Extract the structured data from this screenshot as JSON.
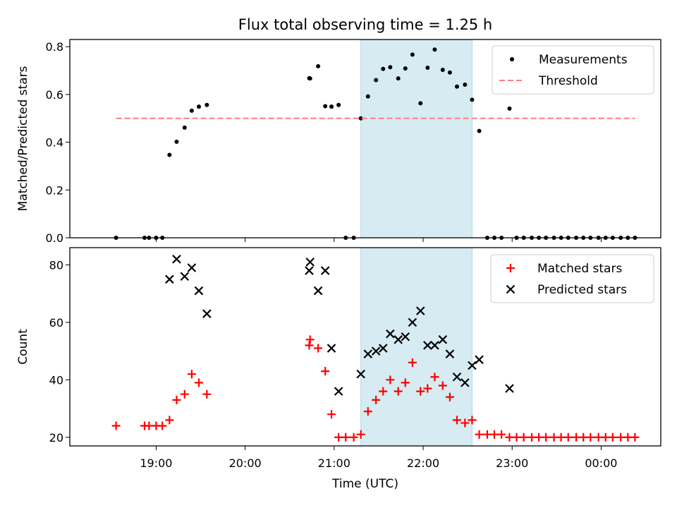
{
  "chart_data": {
    "title": "Flux total observing time = 1.25 h",
    "xlabel": "Time (UTC)",
    "x_ticks": [
      "19:00",
      "20:00",
      "21:00",
      "22:00",
      "23:00",
      "00:00"
    ],
    "x_tick_values": [
      19.0,
      20.0,
      21.0,
      22.0,
      23.0,
      24.0
    ],
    "xlim": [
      18.03,
      24.67
    ],
    "highlight_span": {
      "x0": 21.3,
      "x1": 22.55,
      "color": "#add8e6"
    },
    "times": [
      18.55,
      18.87,
      18.92,
      19.0,
      19.07,
      19.15,
      19.23,
      19.32,
      19.4,
      19.48,
      19.57,
      20.72,
      20.73,
      20.82,
      20.9,
      20.97,
      21.05,
      21.13,
      21.22,
      21.3,
      21.38,
      21.47,
      21.55,
      21.63,
      21.72,
      21.8,
      21.88,
      21.97,
      22.05,
      22.13,
      22.22,
      22.3,
      22.38,
      22.47,
      22.55,
      22.63,
      22.72,
      22.8,
      22.88,
      22.97,
      23.05,
      23.13,
      23.22,
      23.3,
      23.38,
      23.47,
      23.55,
      23.63,
      23.72,
      23.8,
      23.88,
      23.97,
      24.05,
      24.13,
      24.22,
      24.3,
      24.38
    ],
    "panels": [
      {
        "type": "scatter",
        "ylabel": "Matched/Predicted stars",
        "ylim": [
          0,
          0.83
        ],
        "y_ticks": [
          "0.0",
          "0.2",
          "0.4",
          "0.6",
          "0.8"
        ],
        "y_tick_values": [
          0,
          0.2,
          0.4,
          0.6,
          0.8
        ],
        "legend_position": "upper-right",
        "series": [
          {
            "name": "Measurements",
            "style": "dot",
            "color": "#000000",
            "values": [
              0,
              0,
              0,
              0,
              0,
              0.347,
              0.402,
              0.461,
              0.532,
              0.549,
              0.556,
              0.668,
              0.667,
              0.718,
              0.551,
              0.549,
              0.556,
              0,
              0,
              0.5,
              0.592,
              0.66,
              0.707,
              0.714,
              0.667,
              0.709,
              0.767,
              0.563,
              0.712,
              0.788,
              0.703,
              0.692,
              0.633,
              0.641,
              0.578,
              0.447,
              0,
              0,
              0,
              0.541,
              0,
              0,
              0,
              0,
              0,
              0,
              0,
              0,
              0,
              0,
              0,
              0,
              0,
              0,
              0,
              0,
              0
            ]
          },
          {
            "name": "Threshold",
            "style": "dashed-line",
            "color": "#ff7f7f",
            "x": [
              18.55,
              24.38
            ],
            "values": [
              0.5,
              0.5
            ]
          }
        ]
      },
      {
        "type": "scatter",
        "ylabel": "Count",
        "ylim": [
          17,
          86
        ],
        "y_ticks": [
          "20",
          "40",
          "60",
          "80"
        ],
        "y_tick_values": [
          20,
          40,
          60,
          80
        ],
        "legend_position": "upper-right",
        "series": [
          {
            "name": "Matched stars",
            "style": "plus",
            "color": "#ff0000",
            "values": [
              24,
              24,
              24,
              24,
              24,
              26,
              33,
              35,
              42,
              39,
              35,
              52,
              54,
              51,
              43,
              28,
              20,
              20,
              20,
              21,
              29,
              33,
              36,
              40,
              36,
              39,
              46,
              36,
              37,
              41,
              38,
              34,
              26,
              25,
              26,
              21,
              21,
              21,
              21,
              20,
              20,
              20,
              20,
              20,
              20,
              20,
              20,
              20,
              20,
              20,
              20,
              20,
              20,
              20,
              20,
              20,
              20
            ]
          },
          {
            "name": "Predicted stars",
            "style": "x",
            "color": "#000000",
            "values": [
              null,
              null,
              null,
              null,
              null,
              75,
              82,
              76,
              79,
              71,
              63,
              78,
              81,
              71,
              78,
              51,
              36,
              null,
              null,
              42,
              49,
              50,
              51,
              56,
              54,
              55,
              60,
              64,
              52,
              52,
              54,
              49,
              41,
              39,
              45,
              47,
              null,
              null,
              null,
              37,
              null,
              null,
              null,
              null,
              null,
              null,
              null,
              null,
              null,
              null,
              null,
              null,
              null,
              null,
              null,
              null,
              null
            ]
          }
        ]
      }
    ]
  }
}
